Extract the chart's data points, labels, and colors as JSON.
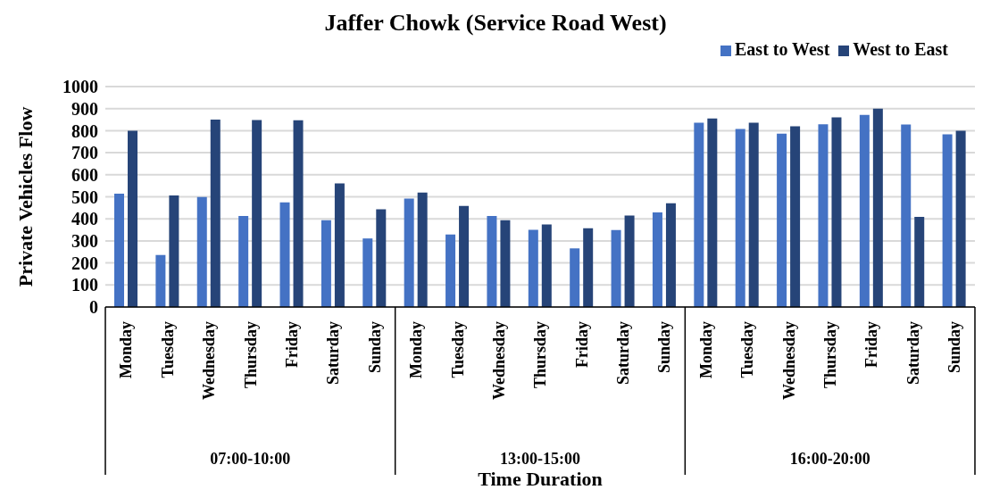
{
  "chart_data": {
    "type": "bar",
    "title": "Jaffer Chowk (Service Road West)",
    "xlabel": "Time Duration",
    "ylabel": "Private Vehicles Flow",
    "categories": [
      "Monday",
      "Tuesday",
      "Wednesday",
      "Thursday",
      "Friday",
      "Saturday",
      "Sunday",
      "Monday",
      "Tuesday",
      "Wednesday",
      "Thursday",
      "Friday",
      "Saturday",
      "Sunday",
      "Monday",
      "Tuesday",
      "Wednesday",
      "Thursday",
      "Friday",
      "Saturday",
      "Sunday"
    ],
    "series": [
      {
        "name": "East to West",
        "color": "#4472c4",
        "values": [
          514,
          236,
          499,
          413,
          475,
          394,
          311,
          492,
          329,
          413,
          350,
          266,
          349,
          429,
          836,
          808,
          786,
          829,
          871,
          828,
          783
        ]
      },
      {
        "name": "West to East",
        "color": "#264478",
        "values": [
          800,
          506,
          850,
          848,
          847,
          561,
          443,
          519,
          459,
          394,
          374,
          357,
          415,
          471,
          855,
          836,
          820,
          860,
          900,
          409,
          800
        ]
      }
    ],
    "annotations": [
      "07:00-10:00",
      "13:00-15:00",
      "16:00-20:00"
    ],
    "ylim": [
      0,
      1000
    ],
    "yticks": [
      0,
      100,
      200,
      300,
      400,
      500,
      600,
      700,
      800,
      900,
      1000
    ],
    "grid": "y",
    "legend": "top right"
  }
}
